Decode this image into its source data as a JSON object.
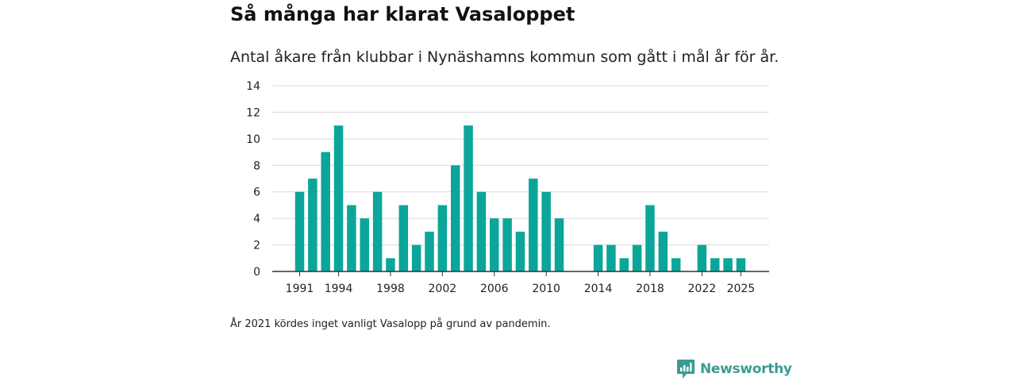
{
  "title": "Så många har klarat Vasaloppet",
  "subtitle": "Antal åkare från klubbar i Nynäshamns kommun som gått i mål år för år.",
  "footnote": "År 2021 kördes inget vanligt Vasalopp på grund av pandemin.",
  "brand": {
    "name": "Newsworthy",
    "icon": "newsworthy-logo-icon"
  },
  "colors": {
    "bar": "#0ba699",
    "grid": "#d9d9d9",
    "axis": "#333333",
    "brand": "#3a9c92"
  },
  "chart_data": {
    "type": "bar",
    "title": "Så många har klarat Vasaloppet",
    "xlabel": "",
    "ylabel": "",
    "ylim": [
      0,
      14
    ],
    "yticks": [
      0,
      2,
      4,
      6,
      8,
      10,
      12,
      14
    ],
    "x_tick_labels": [
      1991,
      1994,
      1998,
      2002,
      2006,
      2010,
      2014,
      2018,
      2022,
      2025
    ],
    "x_range": [
      1991,
      2025
    ],
    "categories": [
      1991,
      1992,
      1993,
      1994,
      1995,
      1996,
      1997,
      1998,
      1999,
      2000,
      2001,
      2002,
      2003,
      2004,
      2005,
      2006,
      2007,
      2008,
      2009,
      2010,
      2011,
      2012,
      2013,
      2014,
      2015,
      2016,
      2017,
      2018,
      2019,
      2020,
      2021,
      2022,
      2023,
      2024,
      2025
    ],
    "values": [
      6,
      7,
      9,
      11,
      5,
      4,
      6,
      1,
      5,
      2,
      3,
      5,
      8,
      11,
      6,
      4,
      4,
      3,
      7,
      6,
      4,
      0,
      0,
      2,
      2,
      1,
      2,
      5,
      3,
      1,
      0,
      2,
      1,
      1,
      1
    ],
    "grid": true,
    "legend": "none"
  }
}
